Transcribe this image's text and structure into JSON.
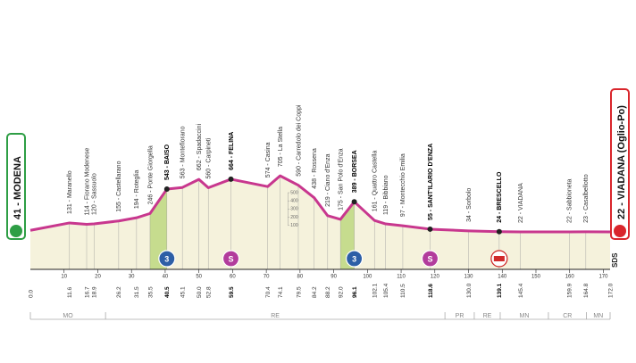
{
  "chart_data": {
    "type": "area",
    "x": [
      {
        "value": 0,
        "label": "0.0"
      },
      11.6,
      16.7,
      18.9,
      26.2,
      31.5,
      35.5,
      40.5,
      45.1,
      {
        "value": 50,
        "label": "50.0"
      },
      52.8,
      59.5,
      70.4,
      74.1,
      79.5,
      84.2,
      88.2,
      {
        "value": 92,
        "label": "92.0"
      },
      96.1,
      102.1,
      105.4,
      110.5,
      118.6,
      {
        "value": 130,
        "label": "130.0"
      },
      139.1,
      145.4,
      159.9,
      164.8,
      {
        "value": 172,
        "label": "172.0"
      }
    ],
    "values": [
      41,
      131,
      114,
      120,
      155,
      194,
      246,
      543,
      563,
      662,
      560,
      664,
      574,
      705,
      590,
      438,
      219,
      175,
      389,
      161,
      119,
      97,
      55,
      34,
      24,
      22,
      22,
      23,
      22
    ],
    "labels": [
      "41 - MODENA",
      "131 - Maranello",
      "114 - Fiorano Modenese",
      "120 - Sassuolo",
      "155 - Castellarano",
      "194 - Roteglia",
      "246 - Ponte Giorgella",
      "543 - BAISO",
      "563 - Montefiorano",
      "662 - Spadaccini",
      "560 - Carpineti",
      "664 - FELINA",
      "574 - Casina",
      "705 - La Stella",
      "590 - Carredolo dei Coppi",
      "438 - Rossena",
      "219 - Ciano d'Enza",
      "175 - San Polo d'Enza",
      "389 - BORSEA",
      "161 - Quattro Castella",
      "119 - Bibbiano",
      "97 - Montecchio Emilia",
      "55 - SANT'ILARIO D'ENZA",
      "34 - Sorbolo",
      "24 - BRESCELLO",
      "22 - VIADANA",
      "22 - Sabbioneta",
      "23 - Casalbellotto",
      "22 - VIADANA (Oglio-Po)"
    ],
    "bold": [
      7,
      11,
      18,
      22,
      24
    ],
    "color": "#c8378e",
    "fill": "#f5f2dc",
    "climb_color": "#c6dc8e",
    "climbs": [
      {
        "from": 35.5,
        "to": 40.5
      },
      {
        "from": 92,
        "to": 96.1
      }
    ],
    "markers": [
      {
        "km": 40.5,
        "kind": "kom",
        "label": "3"
      },
      {
        "km": 59.5,
        "kind": "sprint",
        "label": "S"
      },
      {
        "km": 96.1,
        "kind": "kom",
        "label": "3"
      },
      {
        "km": 118.6,
        "kind": "sprint",
        "label": "S"
      },
      {
        "km": 139.1,
        "kind": "bonus"
      }
    ],
    "xlim": [
      0,
      172
    ],
    "xticks": [
      10,
      20,
      30,
      40,
      50,
      60,
      70,
      80,
      90,
      100,
      110,
      120,
      130,
      140,
      150,
      160,
      170
    ],
    "ylim": [
      0,
      1000
    ],
    "yticks": [
      100,
      200,
      300,
      400,
      500
    ],
    "regions": [
      {
        "name": "MO",
        "from": 0,
        "to": 22.3
      },
      {
        "name": "RE",
        "from": 22.3,
        "to": 123
      },
      {
        "name": "PR",
        "from": 123,
        "to": 131.7
      },
      {
        "name": "RE",
        "from": 131.7,
        "to": 139.4
      },
      {
        "name": "MN",
        "from": 139.4,
        "to": 153.7
      },
      {
        "name": "CR",
        "from": 153.7,
        "to": 165
      },
      {
        "name": "MN",
        "from": 165,
        "to": 172
      }
    ],
    "logo": "SDS"
  }
}
